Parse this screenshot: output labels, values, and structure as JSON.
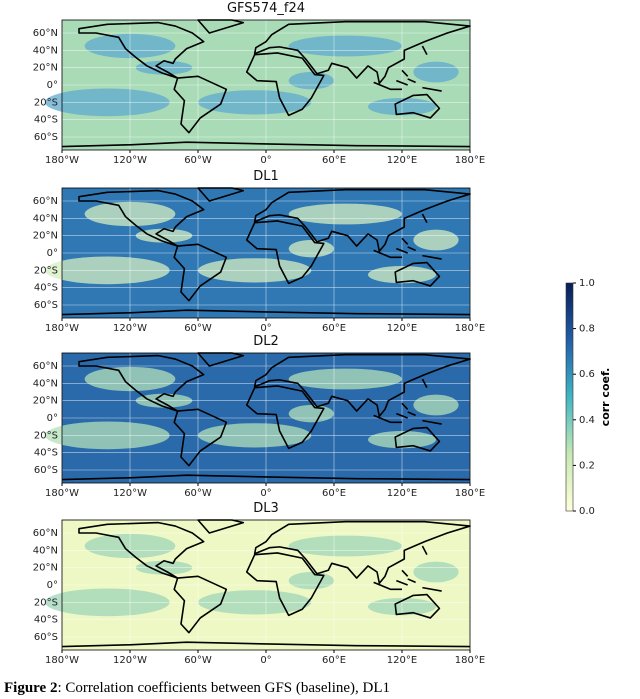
{
  "panels": [
    {
      "title": "GFS574_f24",
      "color": "#a9dbb7",
      "patch": "#5fa9cf"
    },
    {
      "title": "DL1",
      "color": "#2f78b4",
      "patch": "#d6efc2"
    },
    {
      "title": "DL2",
      "color": "#2a6aab",
      "patch": "#b3e0b9"
    },
    {
      "title": "DL3",
      "color": "#eef8c4",
      "patch": "#9fd6b9"
    }
  ],
  "xlim": [
    -180,
    180
  ],
  "ylim": [
    -75,
    75
  ],
  "lon_ticks": [
    {
      "value": -180,
      "label": "180°W"
    },
    {
      "value": -120,
      "label": "120°W"
    },
    {
      "value": -60,
      "label": "60°W"
    },
    {
      "value": 0,
      "label": "0°"
    },
    {
      "value": 60,
      "label": "60°E"
    },
    {
      "value": 120,
      "label": "120°E"
    },
    {
      "value": 180,
      "label": "180°E"
    }
  ],
  "lat_ticks": [
    {
      "value": 60,
      "label": "60°N"
    },
    {
      "value": 40,
      "label": "40°N"
    },
    {
      "value": 20,
      "label": "20°N"
    },
    {
      "value": 0,
      "label": "0°"
    },
    {
      "value": -20,
      "label": "20°S"
    },
    {
      "value": -40,
      "label": "40°S"
    },
    {
      "value": -60,
      "label": "60°S"
    }
  ],
  "colorbar": {
    "label": "corr coef.",
    "clim": [
      0,
      1
    ],
    "ticks": [
      {
        "value": 1,
        "label": "1.0"
      },
      {
        "value": 0.8,
        "label": "0.8"
      },
      {
        "value": 0.6,
        "label": "0.6"
      },
      {
        "value": 0.4,
        "label": "0.4"
      },
      {
        "value": 0.2,
        "label": "0.2"
      },
      {
        "value": 0,
        "label": "0.0"
      }
    ]
  },
  "caption": {
    "label": "Figure 2",
    "text": ": Correlation coefficients between GFS (baseline), DL1"
  }
}
